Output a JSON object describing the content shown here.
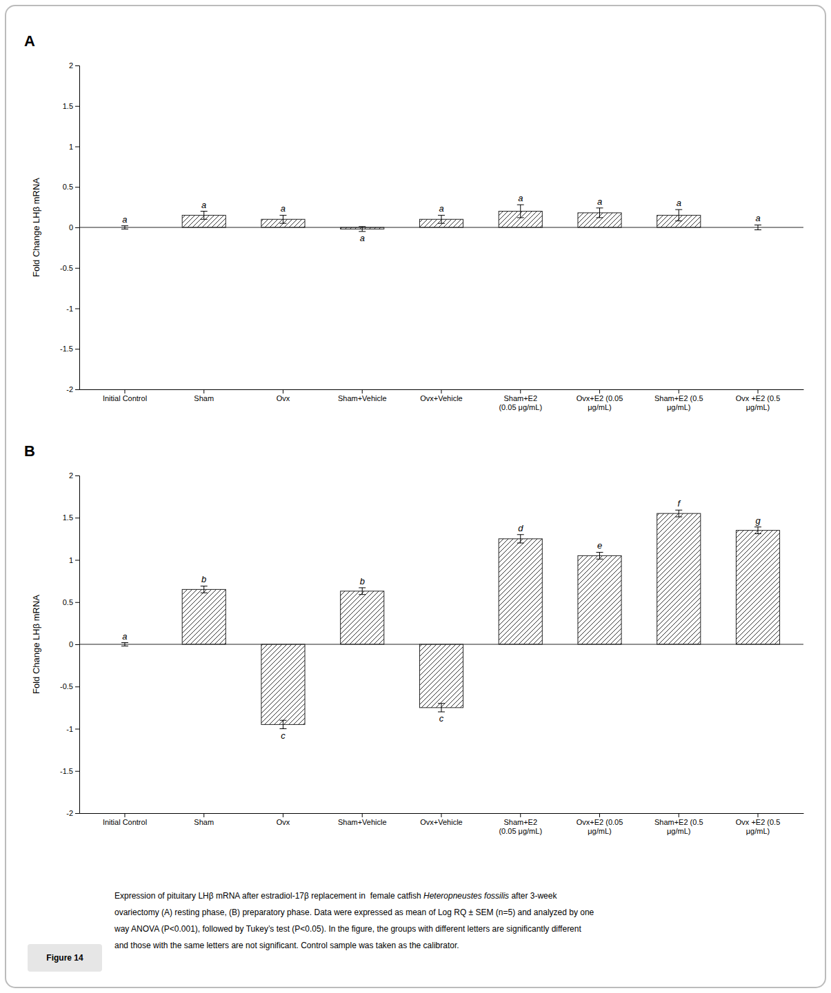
{
  "chart_data": [
    {
      "type": "bar",
      "title": "A",
      "categories": [
        "Initial Control",
        "Sham",
        "Ovx",
        "Sham+Vehicle",
        "Ovx+Vehicle",
        "Sham+E2\n(0.05 μg/mL)",
        "Ovx+E2 (0.05\nμg/mL)",
        "Sham+E2 (0.5\nμg/mL)",
        "Ovx +E2 (0.5\nμg/mL)"
      ],
      "values": [
        0.0,
        0.15,
        0.1,
        -0.02,
        0.1,
        0.2,
        0.18,
        0.15,
        0.0
      ],
      "errors": [
        0.02,
        0.05,
        0.05,
        0.03,
        0.05,
        0.08,
        0.06,
        0.07,
        0.03
      ],
      "annotations": [
        "a",
        "a",
        "a",
        "a",
        "a",
        "a",
        "a",
        "a",
        "a"
      ],
      "ylabel": "Fold Change LHβ mRNA",
      "ylim": [
        -2,
        2
      ],
      "yticks": [
        -2,
        -1.5,
        -1,
        -0.5,
        0,
        0.5,
        1,
        1.5,
        2
      ],
      "grid": false
    },
    {
      "type": "bar",
      "title": "B",
      "categories": [
        "Initial Control",
        "Sham",
        "Ovx",
        "Sham+Vehicle",
        "Ovx+Vehicle",
        "Sham+E2\n(0.05 μg/mL)",
        "Ovx+E2 (0.05\nμg/mL)",
        "Sham+E2 (0.5\nμg/mL)",
        "Ovx +E2 (0.5\nμg/mL)"
      ],
      "values": [
        0.0,
        0.65,
        -0.95,
        0.63,
        -0.75,
        1.25,
        1.05,
        1.55,
        1.35
      ],
      "errors": [
        0.02,
        0.04,
        0.05,
        0.04,
        0.05,
        0.05,
        0.04,
        0.04,
        0.04
      ],
      "annotations": [
        "a",
        "b",
        "c",
        "b",
        "c",
        "d",
        "e",
        "f",
        "g"
      ],
      "ylabel": "Fold Change LHβ mRNA",
      "ylim": [
        -2,
        2
      ],
      "yticks": [
        -2,
        -1.5,
        -1,
        -0.5,
        0,
        0.5,
        1,
        1.5,
        2
      ],
      "grid": false
    }
  ],
  "figure_label": "Figure 14",
  "caption": [
    [
      "Expression of pituitary LHβ mRNA after estradiol-17β replacement in  female catfish ",
      "Heteropneustes fossilis",
      " after 3-week"
    ],
    "ovariectomy (A) resting phase, (B) preparatory phase. Data were expressed as mean of Log RQ ± SEM (n=5) and analyzed by one",
    "way ANOVA (P<0.001), followed by Tukey’s test (P<0.05). In the figure, the groups with different letters are significantly different",
    "and those with the same letters are not significant. Control sample was taken as the calibrator."
  ]
}
